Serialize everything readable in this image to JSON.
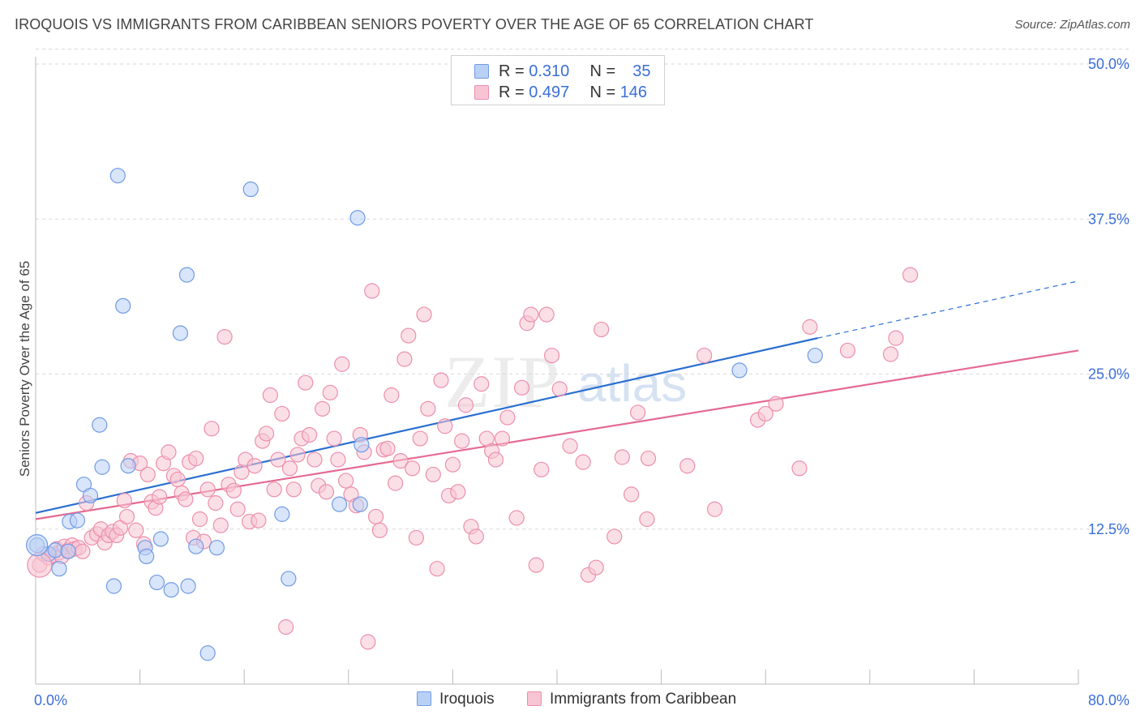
{
  "title": "IROQUOIS VS IMMIGRANTS FROM CARIBBEAN SENIORS POVERTY OVER THE AGE OF 65 CORRELATION CHART",
  "source": "Source: ZipAtlas.com",
  "watermark": {
    "zip": "ZIP",
    "atlas": "atlas"
  },
  "colors": {
    "iroquois_fill": "#b9d0f5",
    "iroquois_stroke": "#6f9be6",
    "iroquois_line": "#2b6fd1",
    "carib_fill": "#f7c4d3",
    "carib_stroke": "#ec8fab",
    "carib_line": "#e46a93",
    "axis_label": "#3a6fd8",
    "grid": "#d8d8d8"
  },
  "legend": {
    "rows": [
      {
        "r_label": "R =",
        "r_value": "0.310",
        "n_label": "N =",
        "n_value": "35"
      },
      {
        "r_label": "R =",
        "r_value": "0.497",
        "n_label": "N =",
        "n_value": "146"
      }
    ]
  },
  "bottom_legend": {
    "iroquois": "Iroquois",
    "carib": "Immigrants from Caribbean"
  },
  "chart_data": {
    "type": "scatter",
    "ylabel": "Seniors Poverty Over the Age of 65",
    "x_tick_labels": [
      "0.0%",
      "80.0%"
    ],
    "y_tick_labels": [
      "12.5%",
      "25.0%",
      "37.5%",
      "50.0%"
    ],
    "y_ticks": [
      12.5,
      25.0,
      37.5,
      50.0
    ],
    "xlim": [
      0,
      80
    ],
    "ylim": [
      0,
      52
    ],
    "grid": true,
    "series": [
      {
        "name": "Iroquois",
        "trend": {
          "x_start": 0,
          "y_start": 13.8,
          "x_end": 60,
          "y_end": 27.9,
          "dash_to_x": 80,
          "dash_to_y": 32.5
        },
        "points": [
          [
            0.1,
            11.2
          ],
          [
            1.0,
            10.5
          ],
          [
            1.5,
            10.8
          ],
          [
            1.8,
            9.3
          ],
          [
            2.5,
            10.7
          ],
          [
            2.6,
            13.1
          ],
          [
            3.2,
            13.2
          ],
          [
            3.7,
            16.1
          ],
          [
            4.2,
            15.2
          ],
          [
            4.9,
            20.9
          ],
          [
            5.1,
            17.5
          ],
          [
            6.0,
            7.9
          ],
          [
            6.3,
            41.0
          ],
          [
            6.7,
            30.5
          ],
          [
            7.1,
            17.6
          ],
          [
            8.4,
            11.0
          ],
          [
            8.5,
            10.3
          ],
          [
            9.3,
            8.2
          ],
          [
            9.6,
            11.7
          ],
          [
            10.4,
            7.6
          ],
          [
            11.1,
            28.3
          ],
          [
            11.6,
            33.0
          ],
          [
            11.7,
            7.9
          ],
          [
            12.3,
            11.1
          ],
          [
            13.2,
            2.5
          ],
          [
            13.9,
            11.0
          ],
          [
            16.5,
            39.9
          ],
          [
            18.9,
            13.7
          ],
          [
            19.4,
            8.5
          ],
          [
            23.3,
            14.5
          ],
          [
            24.7,
            37.6
          ],
          [
            24.9,
            14.5
          ],
          [
            25.0,
            19.3
          ],
          [
            54.0,
            25.3
          ],
          [
            59.8,
            26.5
          ]
        ]
      },
      {
        "name": "Immigrants from Caribbean",
        "trend": {
          "x_start": 0,
          "y_start": 13.3,
          "x_end": 80,
          "y_end": 26.9
        },
        "points": [
          [
            0.3,
            9.6
          ],
          [
            0.6,
            10.5
          ],
          [
            1.0,
            10.2
          ],
          [
            1.3,
            10.4
          ],
          [
            1.6,
            10.9
          ],
          [
            1.8,
            10.6
          ],
          [
            2.0,
            10.3
          ],
          [
            2.2,
            11.1
          ],
          [
            2.5,
            10.8
          ],
          [
            2.8,
            11.2
          ],
          [
            3.0,
            10.9
          ],
          [
            3.3,
            11.0
          ],
          [
            3.6,
            10.7
          ],
          [
            3.9,
            14.6
          ],
          [
            4.3,
            11.8
          ],
          [
            4.7,
            12.1
          ],
          [
            5.0,
            12.5
          ],
          [
            5.3,
            11.4
          ],
          [
            5.6,
            12.0
          ],
          [
            5.9,
            12.3
          ],
          [
            6.2,
            12.0
          ],
          [
            6.5,
            12.6
          ],
          [
            6.8,
            14.8
          ],
          [
            7.0,
            13.5
          ],
          [
            7.3,
            18.0
          ],
          [
            7.7,
            12.4
          ],
          [
            8.0,
            17.8
          ],
          [
            8.3,
            11.3
          ],
          [
            8.6,
            16.9
          ],
          [
            8.9,
            14.7
          ],
          [
            9.2,
            14.2
          ],
          [
            9.5,
            15.1
          ],
          [
            9.8,
            17.8
          ],
          [
            10.2,
            18.7
          ],
          [
            10.6,
            16.8
          ],
          [
            10.9,
            16.5
          ],
          [
            11.2,
            15.4
          ],
          [
            11.5,
            14.9
          ],
          [
            11.8,
            17.9
          ],
          [
            12.1,
            11.8
          ],
          [
            12.3,
            18.2
          ],
          [
            12.6,
            13.3
          ],
          [
            12.9,
            11.5
          ],
          [
            13.2,
            15.7
          ],
          [
            13.5,
            20.6
          ],
          [
            13.8,
            14.6
          ],
          [
            14.2,
            12.8
          ],
          [
            14.5,
            28.0
          ],
          [
            14.8,
            16.1
          ],
          [
            15.2,
            15.6
          ],
          [
            15.5,
            14.1
          ],
          [
            15.8,
            17.1
          ],
          [
            16.1,
            18.1
          ],
          [
            16.4,
            13.1
          ],
          [
            16.8,
            17.6
          ],
          [
            17.1,
            13.2
          ],
          [
            17.4,
            19.6
          ],
          [
            17.7,
            20.2
          ],
          [
            18.0,
            23.3
          ],
          [
            18.3,
            15.7
          ],
          [
            18.6,
            18.1
          ],
          [
            18.9,
            21.8
          ],
          [
            19.2,
            4.6
          ],
          [
            19.5,
            17.4
          ],
          [
            19.8,
            15.7
          ],
          [
            20.1,
            18.5
          ],
          [
            20.4,
            19.8
          ],
          [
            20.7,
            24.3
          ],
          [
            21.0,
            20.1
          ],
          [
            21.4,
            18.1
          ],
          [
            21.7,
            16.0
          ],
          [
            22.0,
            22.2
          ],
          [
            22.3,
            15.5
          ],
          [
            22.6,
            23.5
          ],
          [
            22.9,
            19.8
          ],
          [
            23.2,
            18.1
          ],
          [
            23.5,
            25.8
          ],
          [
            23.8,
            16.4
          ],
          [
            24.2,
            15.3
          ],
          [
            24.6,
            14.4
          ],
          [
            24.9,
            20.1
          ],
          [
            25.2,
            18.7
          ],
          [
            25.5,
            3.4
          ],
          [
            25.8,
            31.7
          ],
          [
            26.1,
            13.5
          ],
          [
            26.4,
            12.4
          ],
          [
            26.7,
            18.9
          ],
          [
            27.0,
            19.0
          ],
          [
            27.3,
            23.3
          ],
          [
            27.6,
            16.2
          ],
          [
            28.0,
            18.0
          ],
          [
            28.3,
            26.2
          ],
          [
            28.6,
            28.1
          ],
          [
            28.9,
            17.4
          ],
          [
            29.2,
            11.8
          ],
          [
            29.5,
            19.8
          ],
          [
            29.8,
            29.8
          ],
          [
            30.1,
            22.2
          ],
          [
            30.5,
            16.9
          ],
          [
            30.8,
            9.3
          ],
          [
            31.1,
            24.5
          ],
          [
            31.4,
            20.8
          ],
          [
            31.7,
            15.2
          ],
          [
            32.0,
            17.7
          ],
          [
            32.4,
            15.5
          ],
          [
            32.7,
            19.6
          ],
          [
            33.0,
            22.5
          ],
          [
            33.4,
            12.7
          ],
          [
            33.8,
            11.9
          ],
          [
            34.2,
            24.2
          ],
          [
            34.6,
            19.8
          ],
          [
            35.0,
            18.8
          ],
          [
            35.3,
            18.1
          ],
          [
            35.8,
            19.8
          ],
          [
            36.2,
            21.5
          ],
          [
            36.9,
            13.4
          ],
          [
            37.3,
            23.9
          ],
          [
            37.7,
            29.1
          ],
          [
            38.0,
            29.8
          ],
          [
            38.4,
            9.6
          ],
          [
            38.8,
            17.3
          ],
          [
            39.2,
            29.8
          ],
          [
            39.6,
            26.5
          ],
          [
            40.2,
            23.8
          ],
          [
            41.0,
            19.2
          ],
          [
            42.0,
            17.9
          ],
          [
            42.4,
            8.8
          ],
          [
            43.0,
            9.4
          ],
          [
            43.4,
            28.6
          ],
          [
            44.4,
            11.9
          ],
          [
            45.0,
            18.3
          ],
          [
            45.7,
            15.3
          ],
          [
            47.0,
            18.2
          ],
          [
            46.2,
            21.9
          ],
          [
            46.9,
            13.3
          ],
          [
            50.0,
            17.6
          ],
          [
            51.3,
            26.5
          ],
          [
            52.1,
            14.1
          ],
          [
            55.4,
            21.3
          ],
          [
            56.0,
            21.8
          ],
          [
            56.8,
            22.6
          ],
          [
            58.6,
            17.4
          ],
          [
            59.4,
            28.8
          ],
          [
            62.3,
            26.9
          ],
          [
            65.6,
            26.6
          ],
          [
            66.0,
            27.9
          ],
          [
            67.1,
            33.0
          ]
        ]
      }
    ]
  }
}
